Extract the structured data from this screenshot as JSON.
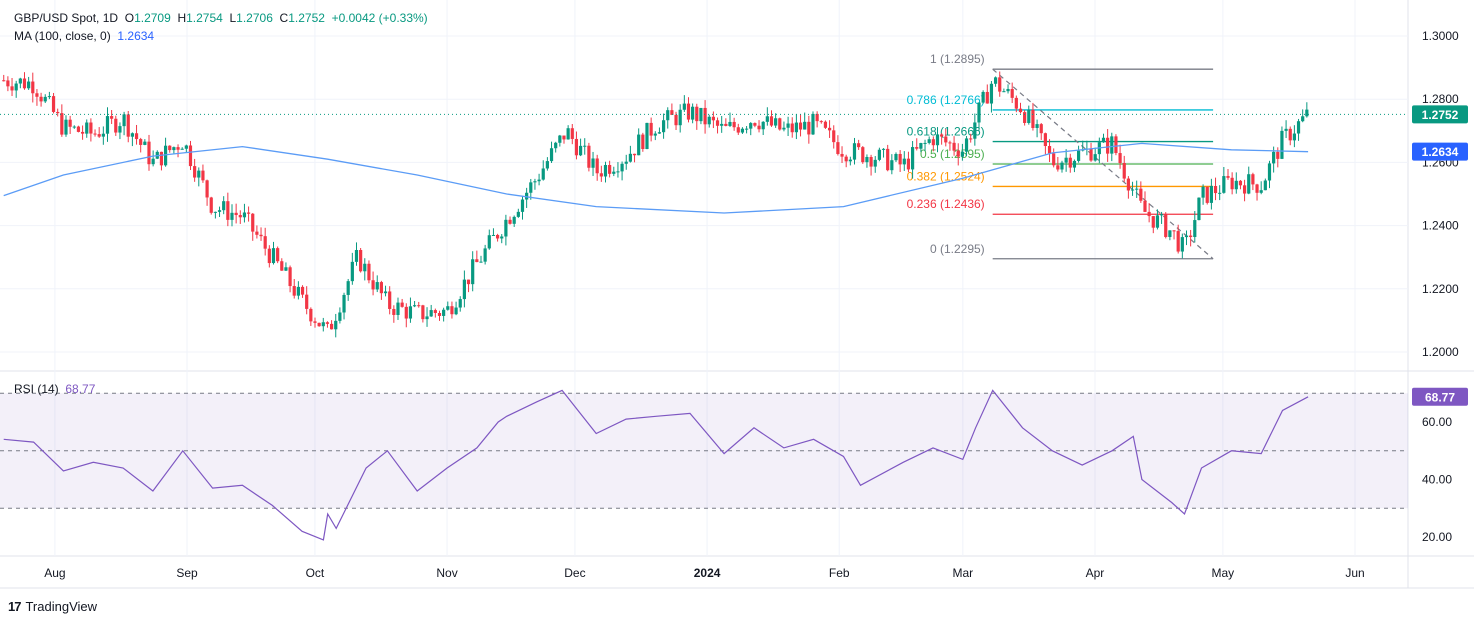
{
  "header": {
    "symbol": "GBP/USD Spot, 1D",
    "open_label": "O",
    "open": "1.2709",
    "high_label": "H",
    "high": "1.2754",
    "low_label": "L",
    "low": "1.2706",
    "close_label": "C",
    "close": "1.2752",
    "change": "+0.0042 (+0.33%)",
    "ma_label": "MA (100, close, 0)",
    "ma_value": "1.2634"
  },
  "rsi_header": {
    "label": "RSI (14)",
    "value": "68.77"
  },
  "branding": {
    "name": "TradingView"
  },
  "colors": {
    "up": "#089981",
    "down": "#f23645",
    "ma": "#5b9cf6",
    "rsi": "#7e57c2",
    "fib_0": "#787b86",
    "fib_236": "#f23645",
    "fib_382": "#ff9800",
    "fib_5": "#4caf50",
    "fib_618": "#089981",
    "fib_786": "#00bcd4",
    "fib_1": "#787b86"
  },
  "chart_data": [
    {
      "type": "candlestick",
      "symbol": "GBP/USD",
      "y_range": [
        1.195,
        1.305
      ],
      "y_ticks": [
        "1.2000",
        "1.2200",
        "1.2400",
        "1.2600",
        "1.2800",
        "1.3000"
      ],
      "x_ticks": [
        "Aug",
        "Sep",
        "Oct",
        "Nov",
        "Dec",
        "2024",
        "Feb",
        "Mar",
        "Apr",
        "May",
        "Jun"
      ],
      "last_price_label": "1.2752",
      "ma_price_label": "1.2634",
      "close_path": [
        [
          "2023-07-20",
          1.286
        ],
        [
          "2023-07-27",
          1.285
        ],
        [
          "2023-08-03",
          1.271
        ],
        [
          "2023-08-10",
          1.269
        ],
        [
          "2023-08-17",
          1.274
        ],
        [
          "2023-08-24",
          1.26
        ],
        [
          "2023-08-31",
          1.267
        ],
        [
          "2023-09-07",
          1.246
        ],
        [
          "2023-09-14",
          1.243
        ],
        [
          "2023-09-21",
          1.23
        ],
        [
          "2023-09-28",
          1.216
        ],
        [
          "2023-10-04",
          1.206
        ],
        [
          "2023-10-11",
          1.23
        ],
        [
          "2023-10-18",
          1.215
        ],
        [
          "2023-10-25",
          1.212
        ],
        [
          "2023-11-01",
          1.213
        ],
        [
          "2023-11-08",
          1.228
        ],
        [
          "2023-11-15",
          1.242
        ],
        [
          "2023-11-22",
          1.255
        ],
        [
          "2023-11-29",
          1.27
        ],
        [
          "2023-12-06",
          1.257
        ],
        [
          "2023-12-13",
          1.262
        ],
        [
          "2023-12-20",
          1.272
        ],
        [
          "2023-12-28",
          1.276
        ],
        [
          "2024-01-05",
          1.27
        ],
        [
          "2024-01-12",
          1.274
        ],
        [
          "2024-01-19",
          1.27
        ],
        [
          "2024-01-26",
          1.272
        ],
        [
          "2024-02-02",
          1.264
        ],
        [
          "2024-02-09",
          1.262
        ],
        [
          "2024-02-16",
          1.259
        ],
        [
          "2024-02-23",
          1.268
        ],
        [
          "2024-03-01",
          1.264
        ],
        [
          "2024-03-08",
          1.286
        ],
        [
          "2024-03-15",
          1.277
        ],
        [
          "2024-03-22",
          1.26
        ],
        [
          "2024-03-29",
          1.263
        ],
        [
          "2024-04-05",
          1.266
        ],
        [
          "2024-04-12",
          1.245
        ],
        [
          "2024-04-19",
          1.238
        ],
        [
          "2024-04-22",
          1.232
        ],
        [
          "2024-04-26",
          1.249
        ],
        [
          "2024-05-03",
          1.254
        ],
        [
          "2024-05-10",
          1.253
        ],
        [
          "2024-05-15",
          1.267
        ],
        [
          "2024-05-21",
          1.2752
        ]
      ],
      "ma_100": [
        [
          "2023-07-20",
          1.2495
        ],
        [
          "2023-08-03",
          1.256
        ],
        [
          "2023-08-24",
          1.262
        ],
        [
          "2023-09-14",
          1.265
        ],
        [
          "2023-10-04",
          1.261
        ],
        [
          "2023-10-25",
          1.256
        ],
        [
          "2023-11-15",
          1.25
        ],
        [
          "2023-12-06",
          1.246
        ],
        [
          "2024-01-05",
          1.244
        ],
        [
          "2024-02-02",
          1.246
        ],
        [
          "2024-03-01",
          1.255
        ],
        [
          "2024-03-22",
          1.263
        ],
        [
          "2024-04-12",
          1.266
        ],
        [
          "2024-05-03",
          1.264
        ],
        [
          "2024-05-21",
          1.2634
        ]
      ],
      "fibonacci": {
        "levels": [
          {
            "ratio": 1,
            "price": 1.2895,
            "label": "1 (1.2895)"
          },
          {
            "ratio": 0.786,
            "price": 1.2766,
            "label": "0.786 (1.2766)"
          },
          {
            "ratio": 0.618,
            "price": 1.2666,
            "label": "0.618 (1.2666)"
          },
          {
            "ratio": 0.5,
            "price": 1.2595,
            "label": "0.5 (1.2595)"
          },
          {
            "ratio": 0.382,
            "price": 1.2524,
            "label": "0.382 (1.2524)"
          },
          {
            "ratio": 0.236,
            "price": 1.2436,
            "label": "0.236 (1.2436)"
          },
          {
            "ratio": 0,
            "price": 1.2295,
            "label": "0 (1.2295)"
          }
        ],
        "start": "2024-03-08",
        "end": "2024-05-21"
      }
    },
    {
      "type": "line",
      "name": "RSI (14)",
      "y_range": [
        15,
        80
      ],
      "y_ticks": [
        "20.00",
        "40.00",
        "60.00"
      ],
      "bands": [
        30,
        50,
        70
      ],
      "last_value_label": "68.77",
      "values": [
        [
          "2023-07-20",
          54
        ],
        [
          "2023-07-27",
          53
        ],
        [
          "2023-08-03",
          43
        ],
        [
          "2023-08-10",
          46
        ],
        [
          "2023-08-17",
          44
        ],
        [
          "2023-08-24",
          36
        ],
        [
          "2023-08-31",
          50
        ],
        [
          "2023-09-07",
          37
        ],
        [
          "2023-09-14",
          38
        ],
        [
          "2023-09-21",
          31
        ],
        [
          "2023-09-28",
          22
        ],
        [
          "2023-10-03",
          19
        ],
        [
          "2023-10-04",
          28
        ],
        [
          "2023-10-06",
          23
        ],
        [
          "2023-10-13",
          44
        ],
        [
          "2023-10-18",
          50
        ],
        [
          "2023-10-25",
          36
        ],
        [
          "2023-11-01",
          44
        ],
        [
          "2023-11-08",
          51
        ],
        [
          "2023-11-13",
          60
        ],
        [
          "2023-11-15",
          62
        ],
        [
          "2023-11-22",
          67
        ],
        [
          "2023-11-28",
          71
        ],
        [
          "2023-12-06",
          56
        ],
        [
          "2023-12-13",
          61
        ],
        [
          "2023-12-20",
          62
        ],
        [
          "2023-12-28",
          63
        ],
        [
          "2024-01-05",
          49
        ],
        [
          "2024-01-12",
          58
        ],
        [
          "2024-01-19",
          51
        ],
        [
          "2024-01-26",
          54
        ],
        [
          "2024-02-02",
          48
        ],
        [
          "2024-02-06",
          38
        ],
        [
          "2024-02-16",
          46
        ],
        [
          "2024-02-23",
          51
        ],
        [
          "2024-03-01",
          47
        ],
        [
          "2024-03-04",
          58
        ],
        [
          "2024-03-08",
          71
        ],
        [
          "2024-03-15",
          58
        ],
        [
          "2024-03-22",
          50
        ],
        [
          "2024-03-29",
          45
        ],
        [
          "2024-04-05",
          50
        ],
        [
          "2024-04-10",
          55
        ],
        [
          "2024-04-12",
          40
        ],
        [
          "2024-04-19",
          32
        ],
        [
          "2024-04-22",
          28
        ],
        [
          "2024-04-26",
          44
        ],
        [
          "2024-05-03",
          50
        ],
        [
          "2024-05-10",
          49
        ],
        [
          "2024-05-15",
          64
        ],
        [
          "2024-05-21",
          68.77
        ]
      ]
    }
  ]
}
